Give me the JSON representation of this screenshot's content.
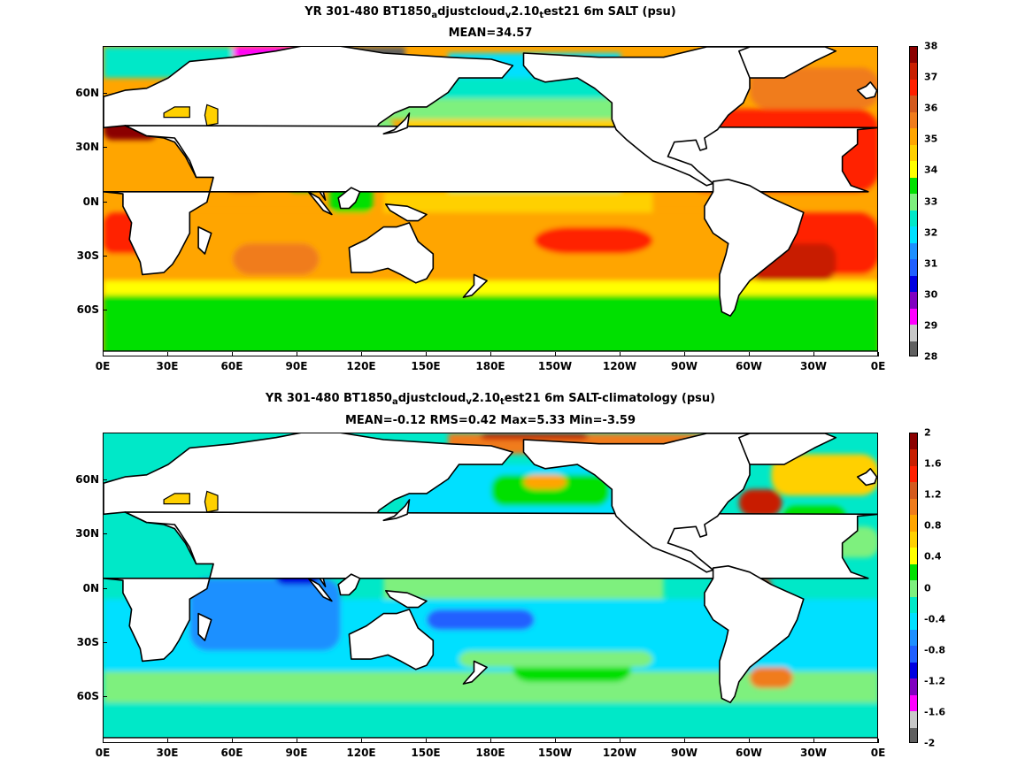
{
  "panels": [
    {
      "title_parts": [
        "YR 301-480 BT1850",
        "a",
        "djustcloud",
        "v",
        "2.10",
        "t",
        "est21 6m SALT (psu)"
      ],
      "subtitle": "MEAN=34.57",
      "x_ticks": [
        "0E",
        "30E",
        "60E",
        "90E",
        "120E",
        "150E",
        "180E",
        "150W",
        "120W",
        "90W",
        "60W",
        "30W",
        "0E"
      ],
      "y_ticks": [
        "60N",
        "30N",
        "0N",
        "30S",
        "60S"
      ],
      "colorbar": {
        "labels": [
          "38",
          "37",
          "36",
          "35",
          "34",
          "33",
          "32",
          "31",
          "30",
          "29",
          "28"
        ],
        "colors": [
          "#8b0000",
          "#c81e00",
          "#ff2000",
          "#d45a1e",
          "#f07c1c",
          "#ffa500",
          "#ffd000",
          "#ffff00",
          "#00e000",
          "#7ef07e",
          "#00e8c8",
          "#00e0ff",
          "#1e90ff",
          "#2060ff",
          "#0000e0",
          "#8000c0",
          "#ff00ff",
          "#c8c8c8",
          "#606060"
        ]
      },
      "chart_data": {
        "type": "heatmap",
        "title": "YR 301-480 BT1850adjustcloudv2.10test21 6m SALT (psu)",
        "summary": {
          "mean": 34.57
        },
        "units": "psu",
        "color_range": [
          28,
          38
        ]
      }
    },
    {
      "title_parts": [
        "YR 301-480 BT1850",
        "a",
        "djustcloud",
        "v",
        "2.10",
        "t",
        "est21 6m SALT-climatology (psu)"
      ],
      "subtitle": "MEAN=-0.12   RMS=0.42   Max=5.33   Min=-3.59",
      "x_ticks": [
        "0E",
        "30E",
        "60E",
        "90E",
        "120E",
        "150E",
        "180E",
        "150W",
        "120W",
        "90W",
        "60W",
        "30W",
        "0E"
      ],
      "y_ticks": [
        "60N",
        "30N",
        "0N",
        "30S",
        "60S"
      ],
      "colorbar": {
        "labels": [
          "2",
          "1.6",
          "1.2",
          "0.8",
          "0.4",
          "0",
          "-0.4",
          "-0.8",
          "-1.2",
          "-1.6",
          "-2"
        ],
        "colors": [
          "#8b0000",
          "#c81e00",
          "#ff2000",
          "#d45a1e",
          "#f07c1c",
          "#ffa500",
          "#ffd000",
          "#ffff00",
          "#00e000",
          "#7ef07e",
          "#00e8c8",
          "#00e0ff",
          "#1e90ff",
          "#2060ff",
          "#0000e0",
          "#8000c0",
          "#ff00ff",
          "#c8c8c8",
          "#606060"
        ]
      },
      "chart_data": {
        "type": "heatmap",
        "title": "YR 301-480 BT1850adjustcloudv2.10test21 6m SALT-climatology (psu)",
        "summary": {
          "mean": -0.12,
          "rms": 0.42,
          "max": 5.33,
          "min": -3.59
        },
        "units": "psu",
        "color_range": [
          -2,
          2
        ]
      }
    }
  ]
}
